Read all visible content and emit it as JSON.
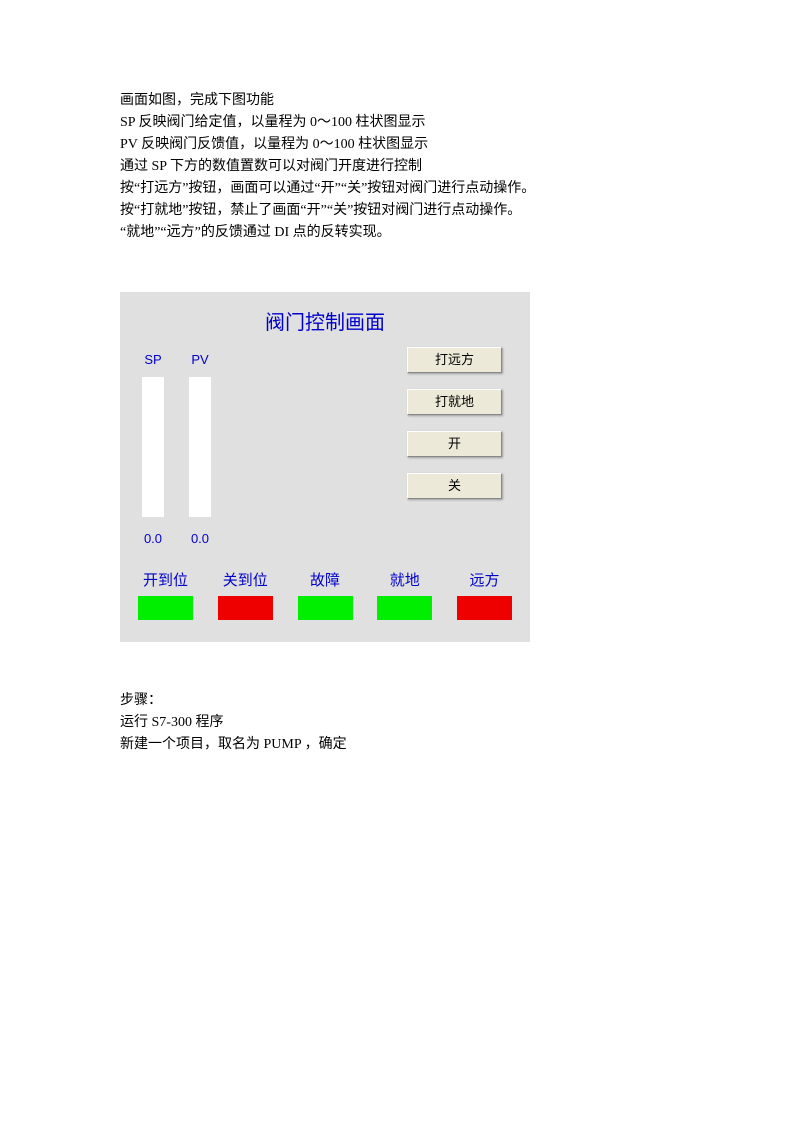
{
  "description": {
    "line1": "画面如图，完成下图功能",
    "line2": "SP 反映阀门给定值，以量程为 0～100 柱状图显示",
    "line3": "PV 反映阀门反馈值，以量程为 0～100 柱状图显示",
    "line4": "通过 SP 下方的数值置数可以对阀门开度进行控制",
    "line5": "按“打远方”按钮，画面可以通过“开”“关”按钮对阀门进行点动操作。",
    "line6": "按“打就地”按钮，禁止了画面“开”“关”按钮对阀门进行点动操作。",
    "line7": "“就地”“远方”的反馈通过 DI 点的反转实现。"
  },
  "panel": {
    "title": "阀门控制画面",
    "title_color": "#0000cc",
    "background_color": "#e0e0e0",
    "bars": {
      "sp": {
        "label": "SP",
        "value": "0.0",
        "range_min": 0,
        "range_max": 100,
        "fill_color": "#ffffff"
      },
      "pv": {
        "label": "PV",
        "value": "0.0",
        "range_min": 0,
        "range_max": 100,
        "fill_color": "#ffffff"
      }
    },
    "buttons": {
      "remote": "打远方",
      "local": "打就地",
      "open": "开",
      "close": "关",
      "button_bg": "#ece9d8"
    },
    "status": {
      "items": [
        {
          "label": "开到位",
          "color": "#00ee00"
        },
        {
          "label": "关到位",
          "color": "#ee0000"
        },
        {
          "label": "故障",
          "color": "#00ee00"
        },
        {
          "label": "就地",
          "color": "#00ee00"
        },
        {
          "label": "远方",
          "color": "#ee0000"
        }
      ],
      "label_color": "#0000cc"
    }
  },
  "footer": {
    "line1": "步骤：",
    "line2": "运行 S7-300 程序",
    "line3": "新建一个项目，取名为 PUMP ，确定"
  }
}
